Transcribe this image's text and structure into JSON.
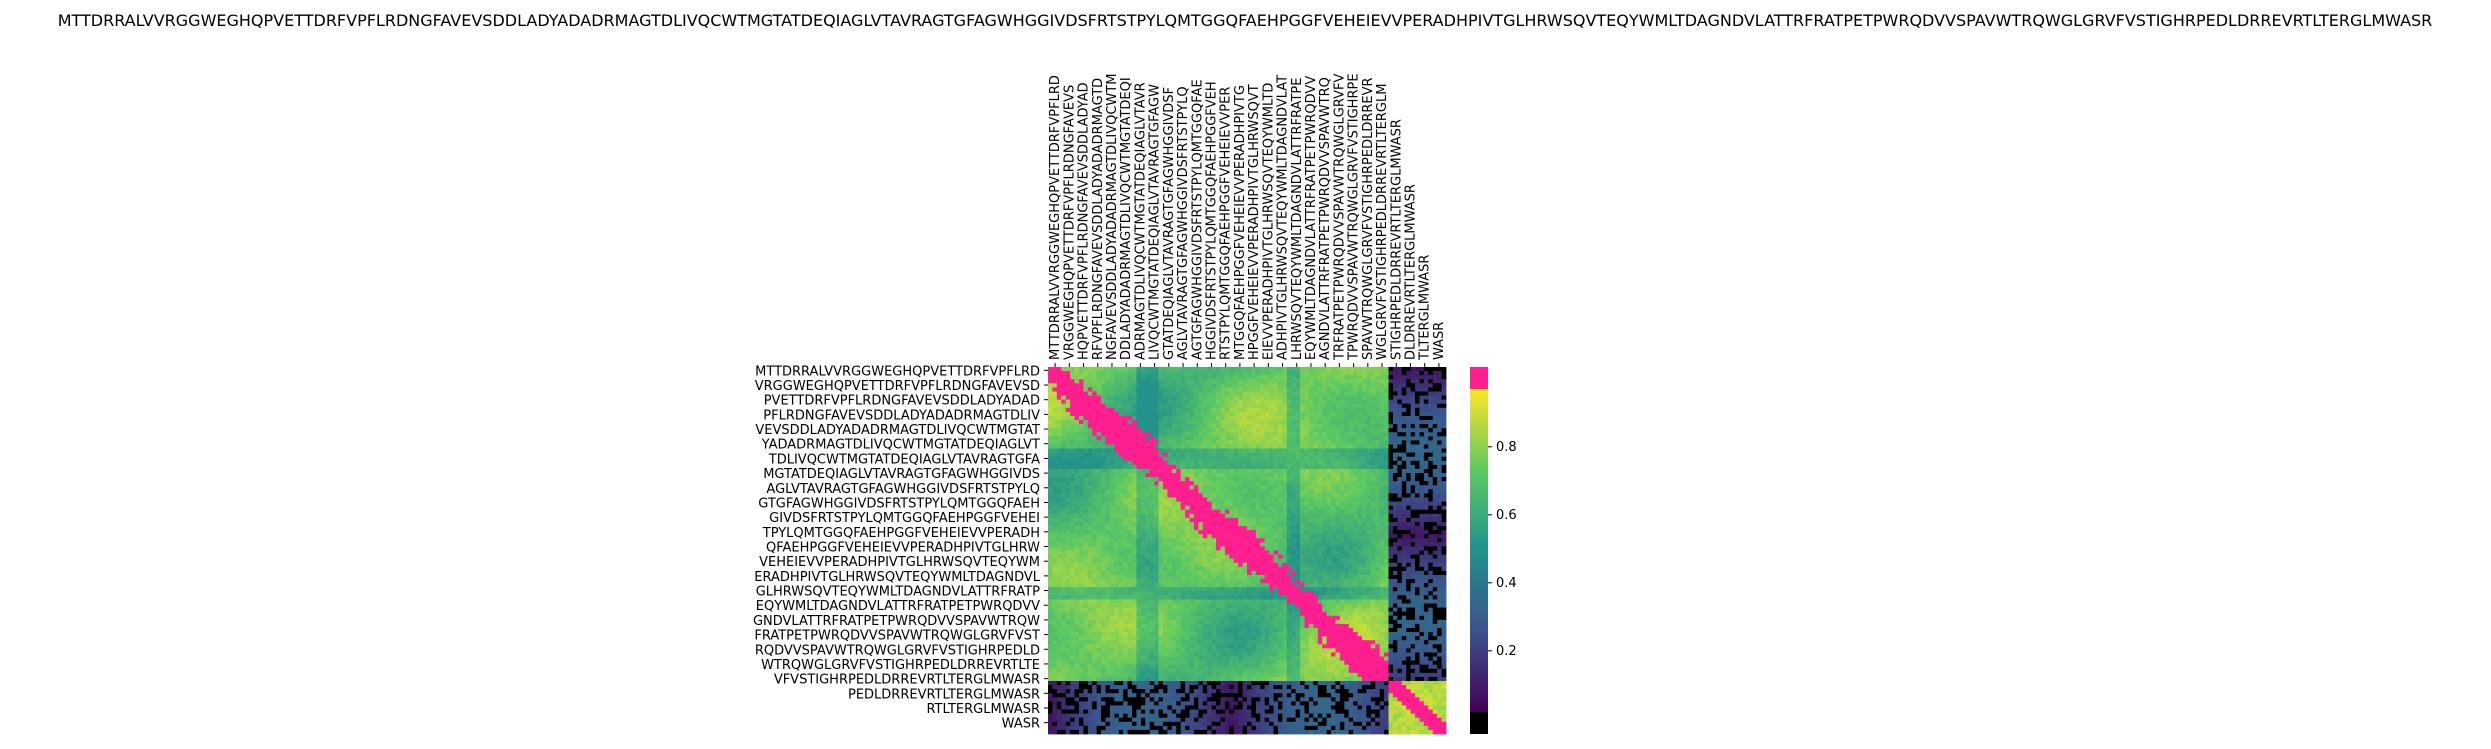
{
  "chart_data": {
    "type": "heatmap",
    "title": "MTTDRRALVVRGGWEGHQPVETTDRFVPFLRDNGFAVEVSDDLADYADADRMAGTDLIVQCWTMGTATDEQIAGLVTAVRAGTGFAGWHGGIVDSFRTSTPYLQMTGGQFAEHPGGFVEHEIEVVPERADHPIVTGLHRWSQVTEQYWMLTDAGNDVLATTRFRATPETPWRQDVVSPAVWTRQWGLGRVFVSTIGHRPEDLDRREVRTLTERGLMWASR",
    "xtick_labels": [
      "MTTDRRALVVRGGWEGHQPVETTDRFVPFLRD",
      "VRGGWEGHQPVETTDRFVPFLRDNGFAVEVS",
      "HQPVETTDRFVPFLRDNGFAVEVSDDLADYAD",
      "RFVPFLRDNGFAVEVSDDLADYADADRMAGTD",
      "NGFAVEVSDDLADYADADRMAGTDLIVQCWTM",
      "DDLADYADADRMAGTDLIVQCWTMGTATDEQI",
      "ADRMAGTDLIVQCWTMGTATDEQIAGLVTAVR",
      "LIVQCWTMGTATDEQIAGLVTAVRAGTGFAGW",
      "GTATDEQIAGLVTAVRAGTGFAGWHGGIVDSF",
      "AGLVTAVRAGTGFAGWHGGIVDSFRTSTPYLQ",
      "AGTGFAGWHGGIVDSFRTSTPYLQMTGGQFAE",
      "HGGIVDSFRTSTPYLQMTGGQFAEHPGGFVEH",
      "RTSTPYLQMTGGQFAEHPGGFVEHEIEVVPER",
      "MTGGQFAEHPGGFVEHEIEVVPERADHPIVTG",
      "HPGGFVEHEIEVVPERADHPIVTGLHRWSQVT",
      "EIEVVPERADHPIVTGLHRWSQVTEQYWMLTD",
      "ADHPIVTGLHRWSQVTEQYWMLTDAGNDVLAT",
      "LHRWSQVTEQYWMLTDAGNDVLATTRFRATPE",
      "EQYWMLTDAGNDVLATTRFRATPETPWRQDVV",
      "AGNDVLATTRFRATPETPWRQDVVSPAVWTRQ",
      "TRFRATPETPWRQDVVSPAVWTRQWGLGRVFV",
      "TPWRQDVVSPAVWTRQWGLGRVFVSTIGHRPE",
      "SPAVWTRQWGLGRVFVSTIGHRPEDLDRREVR",
      "WGLGRVFVSTIGHRPEDLDRREVRTLTERGLM",
      "STIGHRPEDLDRREVRTLTERGLMWASR",
      "DLDRREVRTLTERGLMWASR",
      "TLTERGLMWASR",
      "WASR"
    ],
    "ytick_labels": [
      "MTTDRRALVVRGGWEGHQPVETTDRFVPFLRD",
      "VRGGWEGHQPVETTDRFVPFLRDNGFAVEVSD",
      "PVETTDRFVPFLRDNGFAVEVSDDLADYADAD",
      "PFLRDNGFAVEVSDDLADYADADRMAGTDLIV",
      "VEVSDDLADYADADRMAGTDLIVQCWTMGTAT",
      "YADADRMAGTDLIVQCWTMGTATDEQIAGLVT",
      "TDLIVQCWTMGTATDEQIAGLVTAVRAGTGFA",
      "MGTATDEQIAGLVTAVRAGTGFAGWHGGIVDS",
      "AGLVTAVRAGTGFAGWHGGIVDSFRTSTPYLQ",
      "GTGFAGWHGGIVDSFRTSTPYLQMTGGQFAEH",
      "GIVDSFRTSTPYLQMTGGQFAEHPGGFVEHEI",
      "TPYLQMTGGQFAEHPGGFVEHEIEVVPERADH",
      "QFAEHPGGFVEHEIEVVPERADHPIVTGLHRW",
      "VEHEIEVVPERADHPIVTGLHRWSQVTEQYWM",
      "ERADHPIVTGLHRWSQVTEQYWMLTDAGNDVL",
      "GLHRWSQVTEQYWMLTDAGNDVLATTRFRATP",
      "EQYWMLTDAGNDVLATTRFRATPETPWRQDVV",
      "GNDVLATTRFRATPETPWRQDVVSPAVWTRQW",
      "FRATPETPWRQDVVSPAVWTRQWGLGRVFVST",
      "RQDVVSPAVWTRQWGLGRVFVSTIGHRPEDLD",
      "WTRQWGLGRVFVSTIGHRPEDLDRREVRTLTE",
      "VFVSTIGHRPEDLDRREVRTLTERGLMWASR",
      "PEDLDRREVRTLTERGLMWASR",
      "RTLTERGLMWASR",
      "WASR"
    ],
    "n_bins": 90,
    "n_long_bins": 77,
    "colormap": "viridis",
    "over_color": "#ff1f8f",
    "under_color": "#000000",
    "colorbar": {
      "ticks": [
        0.2,
        0.4,
        0.6,
        0.8
      ],
      "tick_labels": [
        "0.2",
        "0.4",
        "0.6",
        "0.8"
      ],
      "vmin": 0.02,
      "vmax": 0.97
    },
    "blocks": [
      {
        "region": "main",
        "value_range": [
          0.55,
          0.92
        ]
      },
      {
        "region": "diagonal",
        "value": "over"
      },
      {
        "region": "short-vs-long",
        "value_range": [
          0.0,
          0.35
        ]
      },
      {
        "region": "short-vs-short",
        "value_range": [
          0.75,
          0.97
        ]
      }
    ],
    "grid": false,
    "legend": "none"
  }
}
